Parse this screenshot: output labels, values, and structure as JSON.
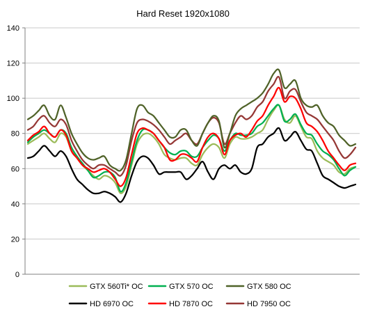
{
  "chart_data": {
    "type": "line",
    "title": "Hard Reset 1920x1080",
    "xlabel": "",
    "ylabel": "",
    "ylim": [
      0,
      140
    ],
    "yticks": [
      0,
      20,
      40,
      60,
      80,
      100,
      120,
      140
    ],
    "x_points": 60,
    "grid": "horizontal",
    "legend_position": "bottom",
    "series": [
      {
        "name": "GTX 560Ti* OC",
        "color": "#9bbb59",
        "values": [
          74,
          76,
          78,
          80,
          77,
          75,
          80,
          78,
          70,
          66,
          62,
          59,
          56,
          54,
          56,
          55,
          52,
          46,
          50,
          62,
          74,
          79,
          80,
          78,
          74,
          68,
          66,
          65,
          66,
          66,
          63,
          62,
          68,
          72,
          74,
          72,
          66,
          74,
          78,
          77,
          77,
          78,
          80,
          82,
          88,
          93,
          96,
          88,
          86,
          90,
          84,
          78,
          77,
          70,
          66,
          64,
          62,
          58,
          57,
          60,
          61
        ]
      },
      {
        "name": "GTX 570 OC",
        "color": "#00b050",
        "values": [
          75,
          78,
          80,
          82,
          80,
          78,
          82,
          80,
          72,
          67,
          63,
          59,
          55,
          56,
          58,
          58,
          55,
          47,
          52,
          64,
          76,
          82,
          82,
          80,
          76,
          72,
          69,
          68,
          70,
          70,
          67,
          67,
          72,
          76,
          79,
          77,
          70,
          76,
          80,
          79,
          79,
          80,
          84,
          86,
          90,
          94,
          96,
          87,
          88,
          91,
          85,
          80,
          79,
          74,
          70,
          68,
          65,
          60,
          56,
          59,
          61
        ]
      },
      {
        "name": "GTX 580 OC",
        "color": "#4f6228",
        "values": [
          88,
          90,
          93,
          96,
          90,
          88,
          96,
          89,
          80,
          74,
          69,
          66,
          65,
          66,
          67,
          62,
          60,
          59,
          65,
          80,
          94,
          96,
          92,
          90,
          86,
          82,
          78,
          78,
          82,
          82,
          76,
          73,
          80,
          86,
          90,
          87,
          72,
          80,
          90,
          94,
          96,
          98,
          100,
          103,
          108,
          114,
          116,
          106,
          108,
          110,
          100,
          96,
          95,
          96,
          90,
          86,
          84,
          79,
          76,
          73,
          74
        ]
      },
      {
        "name": "HD 6970 OC",
        "color": "#000000",
        "values": [
          66,
          67,
          70,
          73,
          70,
          67,
          70,
          67,
          60,
          54,
          51,
          48,
          46,
          46,
          47,
          46,
          44,
          41,
          46,
          56,
          64,
          67,
          66,
          62,
          57,
          58,
          58,
          58,
          58,
          54,
          56,
          60,
          64,
          58,
          54,
          60,
          62,
          60,
          62,
          58,
          57,
          60,
          72,
          74,
          78,
          80,
          83,
          76,
          78,
          81,
          76,
          71,
          70,
          63,
          56,
          54,
          52,
          50,
          49,
          50,
          51
        ]
      },
      {
        "name": "HD 7870 OC",
        "color": "#ff0000",
        "values": [
          76,
          79,
          81,
          84,
          80,
          78,
          82,
          79,
          70,
          66,
          62,
          60,
          58,
          59,
          60,
          58,
          54,
          50,
          55,
          68,
          80,
          83,
          82,
          80,
          76,
          72,
          65,
          65,
          68,
          68,
          66,
          64,
          72,
          78,
          80,
          77,
          68,
          76,
          79,
          80,
          78,
          82,
          87,
          90,
          96,
          101,
          106,
          98,
          101,
          100,
          94,
          86,
          84,
          81,
          76,
          70,
          66,
          62,
          59,
          62,
          63
        ]
      },
      {
        "name": "HD 7950 OC",
        "color": "#953735",
        "values": [
          82,
          84,
          88,
          90,
          86,
          84,
          88,
          85,
          76,
          70,
          65,
          62,
          60,
          62,
          62,
          60,
          58,
          56,
          62,
          76,
          86,
          88,
          87,
          85,
          82,
          78,
          74,
          76,
          78,
          80,
          76,
          74,
          80,
          86,
          89,
          86,
          74,
          80,
          86,
          90,
          88,
          90,
          95,
          98,
          104,
          108,
          112,
          100,
          104,
          105,
          98,
          92,
          90,
          88,
          84,
          80,
          76,
          70,
          66,
          68,
          72
        ]
      }
    ]
  }
}
